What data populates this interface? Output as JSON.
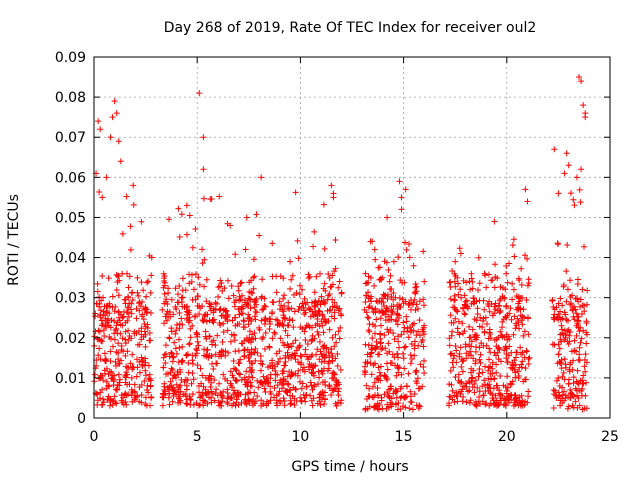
{
  "chart_data": {
    "type": "scatter",
    "title": "Day 268 of 2019, Rate Of TEC Index for receiver oul2",
    "xlabel": "GPS time / hours",
    "ylabel": "ROTI / TECUs",
    "xlim": [
      0,
      25
    ],
    "ylim": [
      0,
      0.09
    ],
    "xticks": [
      0,
      5,
      10,
      15,
      20,
      25
    ],
    "yticks": [
      0,
      0.01,
      0.02,
      0.03,
      0.04,
      0.05,
      0.06,
      0.07,
      0.08,
      0.09
    ],
    "xtick_labels": [
      "0",
      "5",
      "10",
      "15",
      "20",
      "25"
    ],
    "ytick_labels": [
      "0",
      "0.01",
      "0.02",
      "0.03",
      "0.04",
      "0.05",
      "0.06",
      "0.07",
      "0.08",
      "0.09"
    ],
    "grid": true,
    "marker": "+",
    "color": "#ff0000",
    "series": [
      {
        "segments": [
          {
            "x": [
              0,
              2.8
            ],
            "base": [
              0.003,
              0.03
            ],
            "peak": 0.079
          },
          {
            "x": [
              3.3,
              12.0
            ],
            "base": [
              0.003,
              0.03
            ],
            "peak": 0.08
          },
          {
            "x": [
              13.1,
              16.0
            ],
            "base": [
              0.002,
              0.03
            ],
            "peak": 0.059
          },
          {
            "x": [
              17.2,
              21.1
            ],
            "base": [
              0.003,
              0.03
            ],
            "peak": 0.057
          },
          {
            "x": [
              22.2,
              23.9
            ],
            "base": [
              0.002,
              0.03
            ],
            "peak": 0.085
          }
        ],
        "highlights": [
          {
            "x": 0.2,
            "y": 0.074
          },
          {
            "x": 0.3,
            "y": 0.072
          },
          {
            "x": 0.4,
            "y": 0.055
          },
          {
            "x": 0.8,
            "y": 0.07
          },
          {
            "x": 0.9,
            "y": 0.075
          },
          {
            "x": 1.0,
            "y": 0.079
          },
          {
            "x": 1.1,
            "y": 0.076
          },
          {
            "x": 1.2,
            "y": 0.069
          },
          {
            "x": 1.3,
            "y": 0.064
          },
          {
            "x": 0.6,
            "y": 0.06
          },
          {
            "x": 1.9,
            "y": 0.058
          },
          {
            "x": 0.1,
            "y": 0.061
          },
          {
            "x": 5.1,
            "y": 0.081
          },
          {
            "x": 5.3,
            "y": 0.07
          },
          {
            "x": 5.3,
            "y": 0.062
          },
          {
            "x": 8.1,
            "y": 0.06
          },
          {
            "x": 11.5,
            "y": 0.058
          },
          {
            "x": 11.6,
            "y": 0.056
          },
          {
            "x": 11.6,
            "y": 0.055
          },
          {
            "x": 4.5,
            "y": 0.053
          },
          {
            "x": 7.4,
            "y": 0.05
          },
          {
            "x": 6.6,
            "y": 0.048
          },
          {
            "x": 14.8,
            "y": 0.059
          },
          {
            "x": 14.9,
            "y": 0.055
          },
          {
            "x": 14.9,
            "y": 0.052
          },
          {
            "x": 14.2,
            "y": 0.05
          },
          {
            "x": 15.1,
            "y": 0.057
          },
          {
            "x": 20.9,
            "y": 0.057
          },
          {
            "x": 21.0,
            "y": 0.054
          },
          {
            "x": 19.4,
            "y": 0.049
          },
          {
            "x": 22.3,
            "y": 0.067
          },
          {
            "x": 23.5,
            "y": 0.085
          },
          {
            "x": 23.6,
            "y": 0.084
          },
          {
            "x": 23.7,
            "y": 0.078
          },
          {
            "x": 23.8,
            "y": 0.076
          },
          {
            "x": 23.8,
            "y": 0.075
          },
          {
            "x": 22.9,
            "y": 0.066
          },
          {
            "x": 23.0,
            "y": 0.063
          },
          {
            "x": 22.8,
            "y": 0.061
          },
          {
            "x": 23.6,
            "y": 0.062
          },
          {
            "x": 23.4,
            "y": 0.06
          },
          {
            "x": 22.5,
            "y": 0.056
          },
          {
            "x": 13.4,
            "y": 0.044
          },
          {
            "x": 13.6,
            "y": 0.042
          },
          {
            "x": 2.8,
            "y": 0.04
          },
          {
            "x": 9.5,
            "y": 0.039
          },
          {
            "x": 15.3,
            "y": 0.04
          },
          {
            "x": 17.5,
            "y": 0.039
          }
        ]
      }
    ]
  }
}
